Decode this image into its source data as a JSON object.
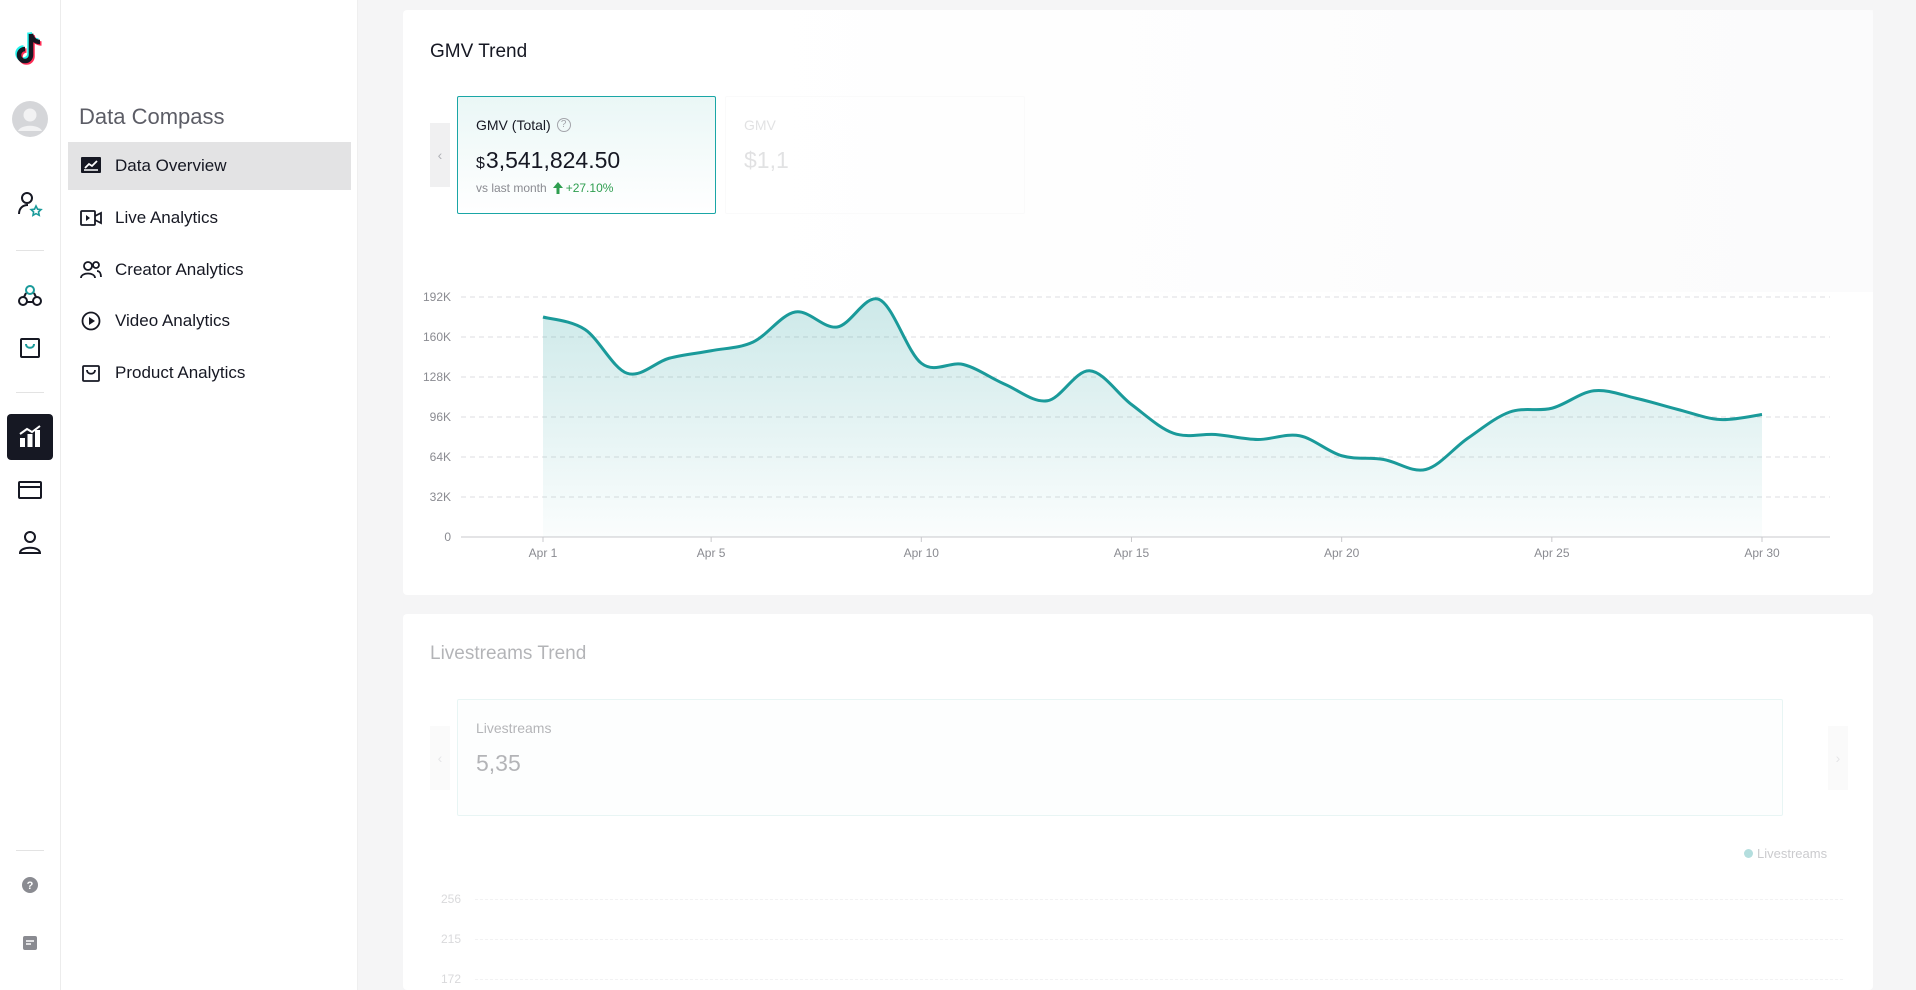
{
  "app": {
    "logo_icon": "tiktok-logo-icon"
  },
  "rail": {
    "items": [
      {
        "icon": "avatar"
      },
      {
        "icon": "creator-star-icon"
      },
      {
        "icon": "collaboration-icon"
      },
      {
        "icon": "shop-bag-icon"
      },
      {
        "icon": "analytics-chart-icon",
        "active": true
      },
      {
        "icon": "billing-card-icon"
      },
      {
        "icon": "account-person-icon"
      },
      {
        "icon": "help-icon"
      },
      {
        "icon": "feedback-icon"
      }
    ]
  },
  "sidebar": {
    "title": "Data Compass",
    "items": [
      {
        "label": "Data Overview",
        "icon": "data-overview-icon",
        "active": true
      },
      {
        "label": "Live Analytics",
        "icon": "live-video-icon"
      },
      {
        "label": "Creator Analytics",
        "icon": "creators-icon"
      },
      {
        "label": "Video Analytics",
        "icon": "play-circle-icon"
      },
      {
        "label": "Product Analytics",
        "icon": "product-bag-icon"
      }
    ]
  },
  "gmv": {
    "title": "GMV Trend",
    "metric": {
      "label": "GMV (Total)",
      "currency": "$",
      "value": "3,541,824.50",
      "compare_text": "vs last month",
      "delta": "+27.10%"
    },
    "next_metric": {
      "label": "GMV",
      "value": "$1,1"
    }
  },
  "livestreams": {
    "title": "Livestreams Trend",
    "metric": {
      "label": "Livestreams",
      "value": "5,35"
    },
    "legend": "Livestreams",
    "y_ticks": [
      "256",
      "215",
      "172"
    ]
  },
  "colors": {
    "accent": "#1a9a9a",
    "positive": "#2e9e4f",
    "active_nav": "#e3e3e4"
  },
  "chart_data": {
    "type": "area",
    "title": "GMV Trend",
    "xlabel": "",
    "ylabel": "",
    "ylim": [
      0,
      192000
    ],
    "y_ticks": [
      "0",
      "32K",
      "64K",
      "96K",
      "128K",
      "160K",
      "192K"
    ],
    "x_ticks": [
      {
        "day": 1,
        "label": "Apr 1"
      },
      {
        "day": 5,
        "label": "Apr 5"
      },
      {
        "day": 10,
        "label": "Apr 10"
      },
      {
        "day": 15,
        "label": "Apr 15"
      },
      {
        "day": 20,
        "label": "Apr 20"
      },
      {
        "day": 25,
        "label": "Apr 25"
      },
      {
        "day": 30,
        "label": "Apr 30"
      }
    ],
    "grid": true,
    "series": [
      {
        "x": [
          1,
          2,
          3,
          4,
          5,
          6,
          7,
          8,
          9,
          10,
          11,
          12,
          13,
          14,
          15,
          16,
          17,
          18,
          19,
          20,
          21,
          22,
          23,
          24,
          25,
          26,
          27,
          28,
          29,
          30
        ],
        "values": [
          176000,
          166000,
          131000,
          143000,
          149000,
          156000,
          180000,
          168000,
          190000,
          139000,
          138000,
          122000,
          109000,
          133000,
          106000,
          83000,
          82000,
          78000,
          81000,
          65000,
          62000,
          54000,
          79000,
          100000,
          103000,
          117000,
          111000,
          102000,
          94000,
          98000
        ]
      }
    ]
  }
}
